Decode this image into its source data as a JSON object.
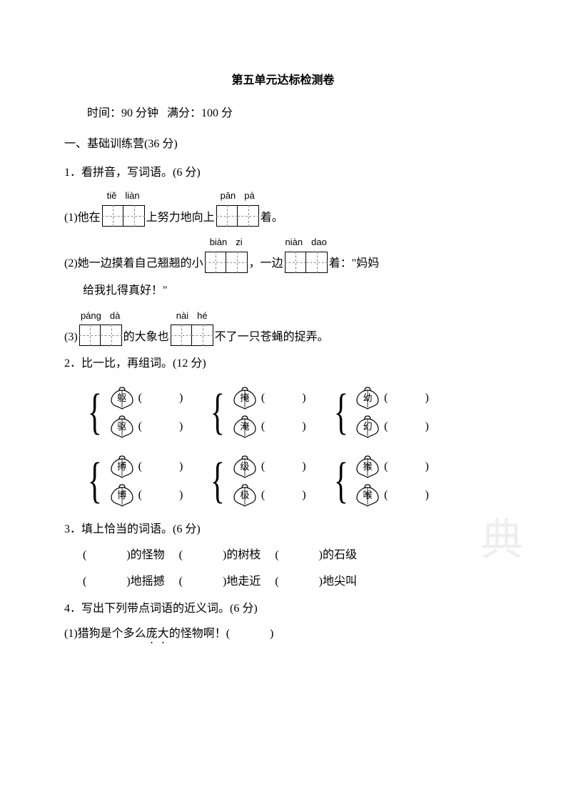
{
  "title": "第五单元达标检测卷",
  "time_label": "时间：",
  "time_value": "90 分钟",
  "score_label": "满分：",
  "score_value": "100 分",
  "section1": {
    "heading": "一、基础训练营(36 分)",
    "q1": {
      "heading": "1．看拼音，写词语。(6 分)",
      "items": [
        {
          "prefix": "(1)他在",
          "pinyin1": [
            "tiě",
            "liàn"
          ],
          "mid": "上努力地向上",
          "pinyin2": [
            "pān",
            "pá"
          ],
          "suffix": "着。"
        },
        {
          "prefix": "(2)她一边摸着自己翘翘的小",
          "pinyin1": [
            "biàn",
            "zi"
          ],
          "mid": "，一边",
          "pinyin2": [
            "niàn",
            "dao"
          ],
          "suffix": "着：\"妈妈",
          "cont": "给我扎得真好！\""
        },
        {
          "prefix": "(3)",
          "pinyin1": [
            "páng",
            "dà"
          ],
          "mid": "的大象也",
          "pinyin2": [
            "nài",
            "hé"
          ],
          "suffix": "不了一只苍蝇的捉弄。"
        }
      ]
    },
    "q2": {
      "heading": "2．比一比，再组词。(12 分)",
      "pairs": [
        [
          [
            "躯",
            "驱"
          ],
          [
            "掩",
            "淹"
          ],
          [
            "幼",
            "幻"
          ]
        ],
        [
          [
            "搏",
            "博"
          ],
          [
            "级",
            "极"
          ],
          [
            "猴",
            "喉"
          ]
        ]
      ]
    },
    "q3": {
      "heading": "3．填上恰当的词语。(6 分)",
      "row1": [
        ")的怪物",
        ")的树枝",
        ")的石级"
      ],
      "row2": [
        ")地摇撼",
        ")地走近",
        ")地尖叫"
      ]
    },
    "q4": {
      "heading": "4．写出下列带点词语的近义词。(6 分)",
      "item1_pre": "(1)猎狗是个多么",
      "item1_dot": "庞大",
      "item1_post": "的怪物啊！(",
      "item1_close": ")"
    }
  },
  "watermark": "典",
  "colors": {
    "text": "#000000",
    "bg": "#ffffff",
    "dash": "#888888",
    "watermark": "#eeeeee"
  }
}
